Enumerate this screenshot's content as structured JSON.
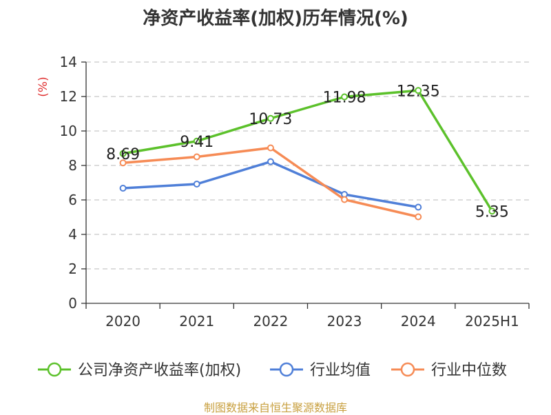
{
  "chart_data": {
    "type": "line",
    "title": "净资产收益率(加权)历年情况(%)",
    "ylabel": "(%)",
    "xlabel": "",
    "categories": [
      "2020",
      "2021",
      "2022",
      "2023",
      "2024",
      "2025H1"
    ],
    "ylim": [
      0,
      14
    ],
    "yticks": [
      0,
      2,
      4,
      6,
      8,
      10,
      12,
      14
    ],
    "grid": "horizontal dashed",
    "legend_position": "bottom",
    "series": [
      {
        "name": "公司净资产收益率(加权)",
        "color": "#5cc12b",
        "values": [
          8.69,
          9.41,
          10.73,
          11.98,
          12.35,
          5.35
        ],
        "show_labels": true
      },
      {
        "name": "行业均值",
        "color": "#4f7fd8",
        "values": [
          6.68,
          6.92,
          8.22,
          6.32,
          5.58,
          null
        ],
        "show_labels": false
      },
      {
        "name": "行业中位数",
        "color": "#f68b55",
        "values": [
          8.15,
          8.5,
          9.02,
          6.02,
          5.02,
          null
        ],
        "show_labels": false
      }
    ]
  },
  "footer": {
    "source": "制图数据来自恒生聚源数据库"
  }
}
